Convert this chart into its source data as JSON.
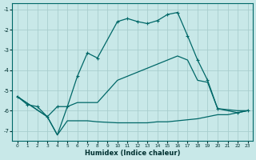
{
  "xlabel": "Humidex (Indice chaleur)",
  "background_color": "#c8e8e8",
  "grid_color": "#a8cece",
  "line_color": "#006868",
  "xlim": [
    -0.5,
    23.5
  ],
  "ylim": [
    -7.5,
    -0.7
  ],
  "yticks": [
    -7,
    -6,
    -5,
    -4,
    -3,
    -2,
    -1
  ],
  "xticks": [
    0,
    1,
    2,
    3,
    4,
    5,
    6,
    7,
    8,
    9,
    10,
    11,
    12,
    13,
    14,
    15,
    16,
    17,
    18,
    19,
    20,
    21,
    22,
    23
  ],
  "s1x": [
    0,
    1,
    2,
    3,
    4,
    5,
    6,
    7,
    8,
    10,
    11,
    12,
    13,
    14,
    15,
    16,
    17,
    18,
    19,
    20,
    22,
    23
  ],
  "s1y": [
    -5.3,
    -5.7,
    -5.8,
    -6.3,
    -5.8,
    -5.8,
    -4.3,
    -3.15,
    -3.4,
    -1.6,
    -1.45,
    -1.6,
    -1.7,
    -1.55,
    -1.25,
    -1.15,
    -2.3,
    -3.5,
    -4.5,
    -5.9,
    -6.1,
    -6.0
  ],
  "s2x": [
    0,
    3,
    4,
    5,
    6,
    7,
    8,
    10,
    11,
    12,
    13,
    14,
    15,
    16,
    17,
    18,
    19,
    20,
    22,
    23
  ],
  "s2y": [
    -5.3,
    -6.3,
    -7.2,
    -5.8,
    -5.6,
    -5.6,
    -5.6,
    -4.5,
    -4.3,
    -4.1,
    -3.9,
    -3.7,
    -3.5,
    -3.3,
    -3.5,
    -4.5,
    -4.6,
    -5.9,
    -6.0,
    -6.0
  ],
  "s3x": [
    0,
    3,
    4,
    5,
    6,
    7,
    8,
    10,
    11,
    12,
    13,
    14,
    15,
    16,
    17,
    18,
    19,
    20,
    21,
    22,
    23
  ],
  "s3y": [
    -5.3,
    -6.3,
    -7.2,
    -6.5,
    -6.5,
    -6.5,
    -6.55,
    -6.6,
    -6.6,
    -6.6,
    -6.6,
    -6.55,
    -6.55,
    -6.5,
    -6.45,
    -6.4,
    -6.3,
    -6.2,
    -6.2,
    -6.1,
    -6.0
  ]
}
